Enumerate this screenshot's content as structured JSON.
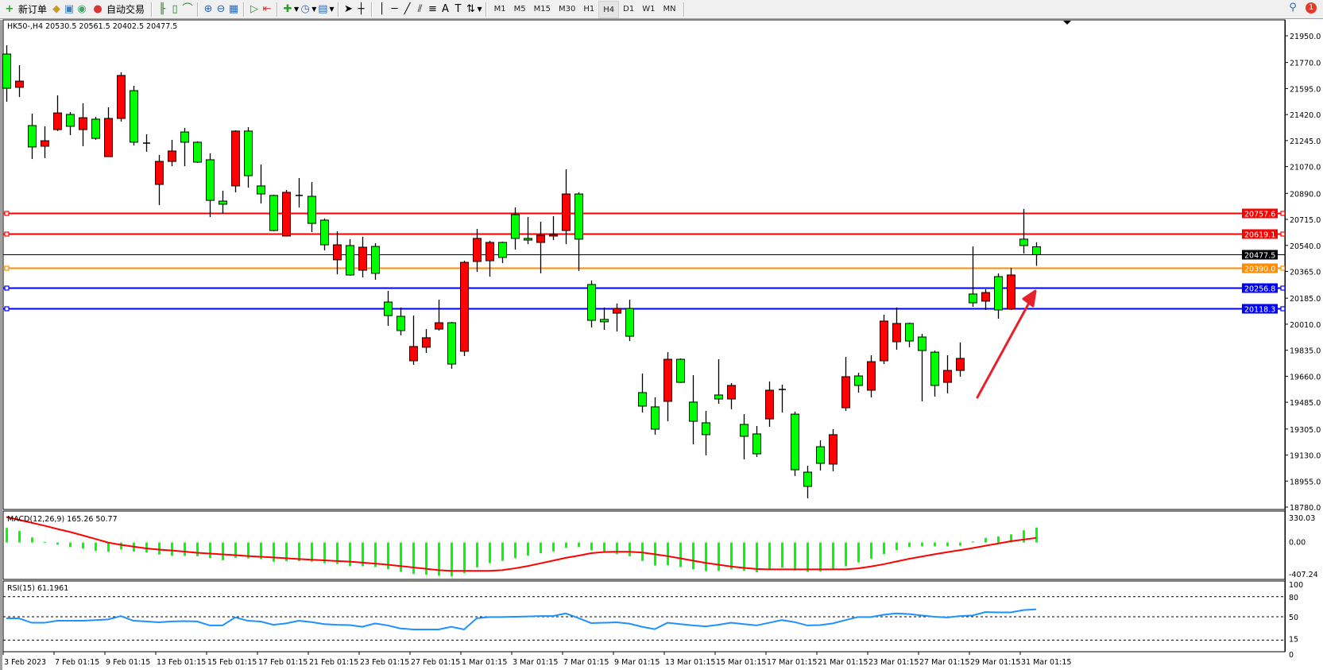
{
  "toolbar": {
    "new_order": "新订单",
    "auto_trading": "自动交易",
    "icons": [
      "new-order-icon",
      "history-icon",
      "market-watch-icon",
      "signals-icon",
      "auto-trading-icon",
      "bar-chart-icon",
      "candlestick-icon",
      "line-chart-icon",
      "zoom-in-icon",
      "zoom-out-icon",
      "tile-windows-icon",
      "auto-scroll-icon",
      "chart-shift-icon",
      "indicators-icon",
      "periods-icon",
      "templates-icon",
      "cursor-icon",
      "crosshair-icon",
      "vertical-line-icon",
      "horizontal-line-icon",
      "trendline-icon",
      "fibonacci-icon",
      "channel-icon",
      "text-icon",
      "text-label-icon",
      "arrows-icon"
    ],
    "text_tool": "A",
    "timeframes": [
      "M1",
      "M5",
      "M15",
      "M30",
      "H1",
      "H4",
      "D1",
      "W1",
      "MN"
    ],
    "active_timeframe": "H4",
    "notification_count": "1"
  },
  "chart": {
    "title": "HK50-,H4  20530.5 20561.5 20402.5 20477.5",
    "price_axis": [
      "21950.0",
      "21770.0",
      "21595.0",
      "21420.0",
      "21245.0",
      "21070.0",
      "20890.0",
      "20715.0",
      "20540.0",
      "20365.0",
      "20185.0",
      "20010.0",
      "19835.0",
      "19660.0",
      "19485.0",
      "19305.0",
      "19130.0",
      "18955.0",
      "18780.0"
    ],
    "horizontal_lines": [
      {
        "label": "20757.6",
        "price": 20757.6,
        "color": "#ff0000"
      },
      {
        "label": "20619.1",
        "price": 20619.1,
        "color": "#ff0000"
      },
      {
        "label": "20477.5",
        "price": 20477.5,
        "color": "#000000"
      },
      {
        "label": "20390.0",
        "price": 20390.0,
        "color": "#ff8c00"
      },
      {
        "label": "20256.8",
        "price": 20256.8,
        "color": "#0000ff"
      },
      {
        "label": "20118.3",
        "price": 20118.3,
        "color": "#0000ff"
      }
    ],
    "date_labels": [
      "3 Feb 2023",
      "7 Feb 01:15",
      "9 Feb 01:15",
      "13 Feb 01:15",
      "15 Feb 01:15",
      "17 Feb 01:15",
      "21 Feb 01:15",
      "23 Feb 01:15",
      "27 Feb 01:15",
      "1 Mar 01:15",
      "3 Mar 01:15",
      "7 Mar 01:15",
      "9 Mar 01:15",
      "13 Mar 01:15",
      "15 Mar 01:15",
      "17 Mar 01:15",
      "21 Mar 01:15",
      "23 Mar 01:15",
      "27 Mar 01:15",
      "29 Mar 01:15",
      "31 Mar 01:15"
    ],
    "bull_color": "#ff0000",
    "bear_color": "#00ff00",
    "arrow_color": "#e8202a"
  },
  "macd": {
    "label": "MACD(12,26,9) 165.26 50.77",
    "axis": [
      "330.03",
      "0.00",
      "-407.24"
    ],
    "histogram_color": "#00ff00",
    "signal_color": "#ff0000"
  },
  "rsi": {
    "label": "RSI(15) 61.1961",
    "axis": [
      "100",
      "80",
      "50",
      "15",
      "0"
    ],
    "line_color": "#1e90ff"
  },
  "chart_data": [
    {
      "type": "candlestick",
      "title": "HK50-,H4",
      "ylim": [
        18780,
        21950
      ],
      "fields": [
        "open",
        "high",
        "low",
        "close"
      ],
      "candles": [
        [
          21827,
          21886,
          21506,
          21597
        ],
        [
          21603,
          21752,
          21538,
          21645
        ],
        [
          21346,
          21426,
          21121,
          21202
        ],
        [
          21207,
          21341,
          21127,
          21244
        ],
        [
          21319,
          21549,
          21309,
          21431
        ],
        [
          21421,
          21437,
          21282,
          21341
        ],
        [
          21319,
          21496,
          21207,
          21399
        ],
        [
          21389,
          21405,
          21250,
          21260
        ],
        [
          21137,
          21469,
          21137,
          21394
        ],
        [
          21394,
          21704,
          21373,
          21683
        ],
        [
          21581,
          21613,
          21212,
          21234
        ],
        [
          21228,
          21287,
          21170,
          21226
        ],
        [
          20950,
          21148,
          20811,
          21105
        ],
        [
          21105,
          21250,
          21073,
          21175
        ],
        [
          21303,
          21330,
          21073,
          21234
        ],
        [
          21234,
          21240,
          21095,
          21100
        ],
        [
          21116,
          21159,
          20731,
          20843
        ],
        [
          20838,
          20908,
          20753,
          20817
        ],
        [
          20940,
          21314,
          20897,
          21309
        ],
        [
          21309,
          21335,
          20929,
          21009
        ],
        [
          20940,
          21084,
          20822,
          20886
        ],
        [
          20876,
          20881,
          20635,
          20640
        ],
        [
          20603,
          20913,
          20600,
          20897
        ],
        [
          20876,
          20993,
          20795,
          20874
        ],
        [
          20870,
          20966,
          20630,
          20688
        ],
        [
          20710,
          20721,
          20507,
          20544
        ],
        [
          20443,
          20635,
          20346,
          20544
        ],
        [
          20539,
          20582,
          20336,
          20341
        ],
        [
          20373,
          20598,
          20325,
          20528
        ],
        [
          20533,
          20555,
          20309,
          20352
        ],
        [
          20159,
          20234,
          19999,
          20068
        ],
        [
          20063,
          20122,
          19935,
          19967
        ],
        [
          19764,
          20068,
          19737,
          19860
        ],
        [
          19855,
          19977,
          19817,
          19919
        ],
        [
          19977,
          20175,
          19967,
          20020
        ],
        [
          20020,
          20025,
          19710,
          19742
        ],
        [
          19828,
          20437,
          19796,
          20426
        ],
        [
          20432,
          20651,
          20362,
          20587
        ],
        [
          20437,
          20571,
          20330,
          20560
        ],
        [
          20560,
          20565,
          20421,
          20459
        ],
        [
          20747,
          20795,
          20512,
          20587
        ],
        [
          20587,
          20731,
          20549,
          20576
        ],
        [
          20560,
          20699,
          20352,
          20608
        ],
        [
          20603,
          20737,
          20576,
          20614
        ],
        [
          20640,
          21052,
          20549,
          20886
        ],
        [
          20886,
          20897,
          20368,
          20582
        ],
        [
          20277,
          20304,
          19988,
          20036
        ],
        [
          20042,
          20122,
          19972,
          20026
        ],
        [
          20084,
          20149,
          19961,
          20116
        ],
        [
          20116,
          20175,
          19897,
          19929
        ],
        [
          19550,
          19678,
          19416,
          19459
        ],
        [
          19454,
          19518,
          19267,
          19304
        ],
        [
          19491,
          19822,
          19357,
          19774
        ],
        [
          19774,
          19780,
          19615,
          19619
        ],
        [
          19486,
          19667,
          19202,
          19357
        ],
        [
          19347,
          19427,
          19128,
          19267
        ],
        [
          19534,
          19774,
          19475,
          19507
        ],
        [
          19507,
          19614,
          19438,
          19598
        ],
        [
          19336,
          19405,
          19101,
          19256
        ],
        [
          19272,
          19325,
          19117,
          19138
        ],
        [
          19373,
          19625,
          19320,
          19566
        ],
        [
          19571,
          19603,
          19416,
          19569
        ],
        [
          19405,
          19422,
          18989,
          19031
        ],
        [
          19015,
          19058,
          18839,
          18919
        ],
        [
          19186,
          19229,
          19026,
          19074
        ],
        [
          19069,
          19304,
          19021,
          19267
        ],
        [
          19448,
          19790,
          19427,
          19657
        ],
        [
          19662,
          19683,
          19550,
          19598
        ],
        [
          19566,
          19801,
          19518,
          19758
        ],
        [
          19764,
          20074,
          19742,
          20031
        ],
        [
          19892,
          20122,
          19838,
          20015
        ],
        [
          20015,
          20020,
          19855,
          19897
        ],
        [
          19924,
          19945,
          19491,
          19833
        ],
        [
          19822,
          19833,
          19523,
          19598
        ],
        [
          19619,
          19801,
          19545,
          19699
        ],
        [
          19699,
          19887,
          19657,
          19780
        ],
        [
          20213,
          20533,
          20127,
          20154
        ],
        [
          20165,
          20245,
          20106,
          20223
        ],
        [
          20330,
          20352,
          20047,
          20106
        ],
        [
          20111,
          20389,
          20106,
          20341
        ],
        [
          20582,
          20785,
          20485,
          20539
        ],
        [
          20530.5,
          20561.5,
          20402.5,
          20477.5
        ]
      ]
    },
    {
      "type": "bar+line",
      "title": "MACD(12,26,9) 165.26 50.77",
      "ylim": [
        -407.24,
        330.03
      ],
      "histogram": [
        161,
        127,
        56,
        6,
        -23,
        -51,
        -68,
        -93,
        -102,
        -76,
        -99,
        -110,
        -133,
        -144,
        -147,
        -152,
        -172,
        -195,
        -169,
        -175,
        -183,
        -212,
        -206,
        -206,
        -212,
        -228,
        -237,
        -262,
        -262,
        -271,
        -296,
        -324,
        -347,
        -355,
        -367,
        -375,
        -338,
        -274,
        -228,
        -203,
        -172,
        -144,
        -118,
        -99,
        -59,
        -51,
        -87,
        -107,
        -127,
        -152,
        -203,
        -254,
        -251,
        -271,
        -296,
        -316,
        -313,
        -296,
        -313,
        -330,
        -293,
        -279,
        -310,
        -324,
        -319,
        -293,
        -262,
        -220,
        -178,
        -127,
        -85,
        -51,
        -42,
        -42,
        -42,
        -34,
        11,
        51,
        68,
        90,
        135,
        165.26
      ],
      "signal": [
        282,
        250,
        218,
        186,
        150,
        117,
        79,
        40,
        0,
        -25,
        -45,
        -65,
        -78,
        -88,
        -100,
        -113,
        -122,
        -131,
        -140,
        -149,
        -157,
        -165,
        -174,
        -182,
        -190,
        -197,
        -204,
        -211,
        -222,
        -233,
        -245,
        -260,
        -275,
        -290,
        -305,
        -313,
        -313,
        -313,
        -313,
        -305,
        -285,
        -260,
        -230,
        -200,
        -169,
        -145,
        -118,
        -105,
        -102,
        -102,
        -110,
        -130,
        -150,
        -175,
        -200,
        -225,
        -245,
        -265,
        -280,
        -292,
        -296,
        -296,
        -296,
        -296,
        -296,
        -296,
        -296,
        -285,
        -265,
        -240,
        -210,
        -180,
        -155,
        -130,
        -107,
        -85,
        -62,
        -36,
        -11,
        14,
        33,
        50.77
      ]
    },
    {
      "type": "line",
      "title": "RSI(15) 61.1961",
      "ylim": [
        0,
        100
      ],
      "levels": [
        80,
        50,
        15
      ],
      "values": [
        47.7,
        47.5,
        41,
        41,
        44,
        44,
        44,
        45,
        46,
        51,
        44,
        43,
        41.6,
        43,
        43.5,
        43,
        37,
        37,
        49,
        44,
        42.8,
        38,
        40,
        44,
        42,
        39,
        38,
        37.5,
        35,
        40,
        37,
        32.5,
        31,
        31,
        31,
        35,
        31,
        47.7,
        49.6,
        49.6,
        50,
        50.5,
        51,
        51,
        55,
        48,
        40.5,
        41,
        41.6,
        39.7,
        35,
        31.4,
        41,
        39,
        37,
        35.6,
        38,
        41,
        39,
        37,
        41,
        45,
        42,
        37,
        37.5,
        40,
        45,
        49.6,
        49.6,
        53,
        55,
        54,
        52,
        50,
        49,
        51,
        52,
        57,
        56.5,
        56.5,
        60,
        61.1961
      ]
    }
  ]
}
